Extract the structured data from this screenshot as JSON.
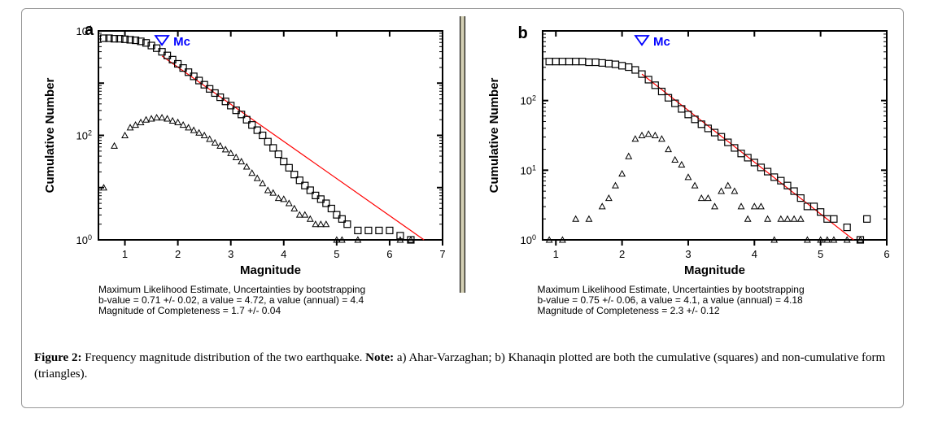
{
  "caption": {
    "label": "Figure 2:",
    "text_part1": " Frequency magnitude distribution of the two earthquake. ",
    "note_label": "Note:",
    "text_part2": " a) Ahar-Varzaghan; b) Khanaqin plotted are both the cumulative (squares) and non-cumulative form (triangles)."
  },
  "panels": {
    "a": {
      "label": "a",
      "chart": {
        "type": "scatter-log",
        "xlabel": "Magnitude",
        "ylabel": "Cumulative Number",
        "xlim": [
          0.5,
          7
        ],
        "xticks": [
          1,
          2,
          3,
          4,
          5,
          6,
          7
        ],
        "ylim_log10": [
          0,
          4
        ],
        "yticks_labels": [
          "10^0",
          "10^2",
          "10^4"
        ],
        "mc_marker": {
          "x": 1.7,
          "label": "Mc",
          "color": "#0000ff"
        },
        "fit_line": {
          "x1": 1.7,
          "logy1": 3.52,
          "x2": 6.65,
          "logy2": 0.0,
          "color": "#ff0000",
          "width": 1.2
        },
        "squares": {
          "marker": "square-open",
          "size": 8,
          "color": "#000000",
          "points": [
            [
              0.6,
              3.86
            ],
            [
              0.7,
              3.86
            ],
            [
              0.8,
              3.85
            ],
            [
              0.9,
              3.85
            ],
            [
              1.0,
              3.84
            ],
            [
              1.1,
              3.83
            ],
            [
              1.2,
              3.82
            ],
            [
              1.3,
              3.8
            ],
            [
              1.4,
              3.77
            ],
            [
              1.5,
              3.72
            ],
            [
              1.6,
              3.67
            ],
            [
              1.7,
              3.6
            ],
            [
              1.8,
              3.53
            ],
            [
              1.9,
              3.45
            ],
            [
              2.0,
              3.37
            ],
            [
              2.1,
              3.29
            ],
            [
              2.2,
              3.21
            ],
            [
              2.3,
              3.13
            ],
            [
              2.4,
              3.05
            ],
            [
              2.5,
              2.97
            ],
            [
              2.6,
              2.89
            ],
            [
              2.7,
              2.81
            ],
            [
              2.8,
              2.73
            ],
            [
              2.9,
              2.65
            ],
            [
              3.0,
              2.57
            ],
            [
              3.1,
              2.48
            ],
            [
              3.2,
              2.4
            ],
            [
              3.3,
              2.3
            ],
            [
              3.4,
              2.2
            ],
            [
              3.5,
              2.1
            ],
            [
              3.6,
              2.0
            ],
            [
              3.7,
              1.88
            ],
            [
              3.8,
              1.76
            ],
            [
              3.9,
              1.64
            ],
            [
              4.0,
              1.5
            ],
            [
              4.1,
              1.38
            ],
            [
              4.2,
              1.25
            ],
            [
              4.3,
              1.14
            ],
            [
              4.4,
              1.04
            ],
            [
              4.5,
              0.95
            ],
            [
              4.6,
              0.85
            ],
            [
              4.7,
              0.78
            ],
            [
              4.8,
              0.7
            ],
            [
              4.9,
              0.6
            ],
            [
              5.0,
              0.48
            ],
            [
              5.1,
              0.4
            ],
            [
              5.2,
              0.3
            ],
            [
              5.4,
              0.18
            ],
            [
              5.6,
              0.18
            ],
            [
              5.8,
              0.18
            ],
            [
              6.0,
              0.18
            ],
            [
              6.2,
              0.08
            ],
            [
              6.4,
              0.0
            ]
          ]
        },
        "triangles": {
          "marker": "triangle-open",
          "size": 6,
          "color": "#000000",
          "points": [
            [
              0.6,
              1.0
            ],
            [
              0.8,
              1.8
            ],
            [
              1.0,
              2.0
            ],
            [
              1.1,
              2.15
            ],
            [
              1.2,
              2.2
            ],
            [
              1.3,
              2.25
            ],
            [
              1.4,
              2.3
            ],
            [
              1.5,
              2.32
            ],
            [
              1.6,
              2.34
            ],
            [
              1.7,
              2.34
            ],
            [
              1.8,
              2.32
            ],
            [
              1.9,
              2.28
            ],
            [
              2.0,
              2.25
            ],
            [
              2.1,
              2.2
            ],
            [
              2.2,
              2.15
            ],
            [
              2.3,
              2.1
            ],
            [
              2.4,
              2.05
            ],
            [
              2.5,
              2.0
            ],
            [
              2.6,
              1.93
            ],
            [
              2.7,
              1.86
            ],
            [
              2.8,
              1.8
            ],
            [
              2.9,
              1.73
            ],
            [
              3.0,
              1.66
            ],
            [
              3.1,
              1.58
            ],
            [
              3.2,
              1.5
            ],
            [
              3.3,
              1.4
            ],
            [
              3.4,
              1.28
            ],
            [
              3.5,
              1.18
            ],
            [
              3.6,
              1.08
            ],
            [
              3.7,
              0.95
            ],
            [
              3.8,
              0.9
            ],
            [
              3.9,
              0.8
            ],
            [
              4.0,
              0.78
            ],
            [
              4.1,
              0.7
            ],
            [
              4.2,
              0.6
            ],
            [
              4.3,
              0.48
            ],
            [
              4.4,
              0.48
            ],
            [
              4.5,
              0.4
            ],
            [
              4.6,
              0.3
            ],
            [
              4.7,
              0.3
            ],
            [
              4.8,
              0.3
            ],
            [
              5.0,
              0.0
            ],
            [
              5.1,
              0.0
            ],
            [
              5.4,
              0.0
            ],
            [
              6.2,
              0.0
            ],
            [
              6.4,
              0.0
            ]
          ]
        }
      },
      "stats": {
        "line1": "Maximum Likelihood Estimate, Uncertainties by bootstrapping",
        "line2": "b-value = 0.71 +/- 0.02,  a value = 4.72,  a value (annual) = 4.4",
        "line3": "Magnitude of Completeness = 1.7 +/- 0.04"
      }
    },
    "b": {
      "label": "b",
      "chart": {
        "type": "scatter-log",
        "xlabel": "Magnitude",
        "ylabel": "Cumulative Number",
        "xlim": [
          0.8,
          6
        ],
        "xticks": [
          1,
          2,
          3,
          4,
          5,
          6
        ],
        "ylim_log10": [
          0,
          3
        ],
        "yticks_labels": [
          "10^0",
          "10^1",
          "10^2"
        ],
        "mc_marker": {
          "x": 2.3,
          "label": "Mc",
          "color": "#0000ff"
        },
        "fit_line": {
          "x1": 2.3,
          "logy1": 2.38,
          "x2": 5.5,
          "logy2": 0.0,
          "color": "#ff0000",
          "width": 1.2
        },
        "squares": {
          "marker": "square-open",
          "size": 8,
          "color": "#000000",
          "points": [
            [
              0.9,
              2.56
            ],
            [
              1.0,
              2.56
            ],
            [
              1.1,
              2.56
            ],
            [
              1.2,
              2.56
            ],
            [
              1.3,
              2.56
            ],
            [
              1.4,
              2.56
            ],
            [
              1.5,
              2.55
            ],
            [
              1.6,
              2.55
            ],
            [
              1.7,
              2.54
            ],
            [
              1.8,
              2.53
            ],
            [
              1.9,
              2.52
            ],
            [
              2.0,
              2.5
            ],
            [
              2.1,
              2.48
            ],
            [
              2.2,
              2.44
            ],
            [
              2.3,
              2.38
            ],
            [
              2.4,
              2.3
            ],
            [
              2.5,
              2.22
            ],
            [
              2.6,
              2.13
            ],
            [
              2.7,
              2.04
            ],
            [
              2.8,
              1.96
            ],
            [
              2.9,
              1.88
            ],
            [
              3.0,
              1.8
            ],
            [
              3.1,
              1.73
            ],
            [
              3.2,
              1.66
            ],
            [
              3.3,
              1.6
            ],
            [
              3.4,
              1.54
            ],
            [
              3.5,
              1.48
            ],
            [
              3.6,
              1.4
            ],
            [
              3.7,
              1.32
            ],
            [
              3.8,
              1.24
            ],
            [
              3.9,
              1.18
            ],
            [
              4.0,
              1.11
            ],
            [
              4.1,
              1.04
            ],
            [
              4.2,
              0.98
            ],
            [
              4.3,
              0.9
            ],
            [
              4.4,
              0.85
            ],
            [
              4.5,
              0.78
            ],
            [
              4.6,
              0.7
            ],
            [
              4.7,
              0.6
            ],
            [
              4.8,
              0.48
            ],
            [
              4.9,
              0.48
            ],
            [
              5.0,
              0.4
            ],
            [
              5.1,
              0.3
            ],
            [
              5.2,
              0.3
            ],
            [
              5.4,
              0.18
            ],
            [
              5.6,
              0.0
            ],
            [
              5.7,
              0.3
            ]
          ]
        },
        "triangles": {
          "marker": "triangle-open",
          "size": 6,
          "color": "#000000",
          "points": [
            [
              0.9,
              0.0
            ],
            [
              1.1,
              0.0
            ],
            [
              1.3,
              0.3
            ],
            [
              1.5,
              0.3
            ],
            [
              1.7,
              0.48
            ],
            [
              1.8,
              0.6
            ],
            [
              1.9,
              0.78
            ],
            [
              2.0,
              0.95
            ],
            [
              2.1,
              1.2
            ],
            [
              2.2,
              1.45
            ],
            [
              2.3,
              1.5
            ],
            [
              2.4,
              1.52
            ],
            [
              2.5,
              1.5
            ],
            [
              2.6,
              1.45
            ],
            [
              2.7,
              1.3
            ],
            [
              2.8,
              1.15
            ],
            [
              2.9,
              1.08
            ],
            [
              3.0,
              0.9
            ],
            [
              3.1,
              0.78
            ],
            [
              3.2,
              0.6
            ],
            [
              3.3,
              0.6
            ],
            [
              3.4,
              0.48
            ],
            [
              3.5,
              0.7
            ],
            [
              3.6,
              0.78
            ],
            [
              3.7,
              0.7
            ],
            [
              3.8,
              0.48
            ],
            [
              3.9,
              0.3
            ],
            [
              4.0,
              0.48
            ],
            [
              4.1,
              0.48
            ],
            [
              4.2,
              0.3
            ],
            [
              4.3,
              0.0
            ],
            [
              4.4,
              0.3
            ],
            [
              4.5,
              0.3
            ],
            [
              4.6,
              0.3
            ],
            [
              4.7,
              0.3
            ],
            [
              4.8,
              0.0
            ],
            [
              5.0,
              0.0
            ],
            [
              5.1,
              0.0
            ],
            [
              5.2,
              0.0
            ],
            [
              5.4,
              0.0
            ],
            [
              5.6,
              0.0
            ]
          ]
        }
      },
      "stats": {
        "line1": "Maximum Likelihood Estimate, Uncertainties by bootstrapping",
        "line2": "b-value = 0.75 +/- 0.06,  a value = 4.1,  a value (annual) = 4.18",
        "line3": "Magnitude of Completeness = 2.3 +/- 0.12"
      }
    }
  },
  "style": {
    "axis_color": "#000000",
    "axis_width": 2,
    "tick_fontsize": 13,
    "label_fontsize": 15,
    "label_fontweight": "bold",
    "background": "#ffffff",
    "caption_fontfamily": "Georgia, serif"
  }
}
